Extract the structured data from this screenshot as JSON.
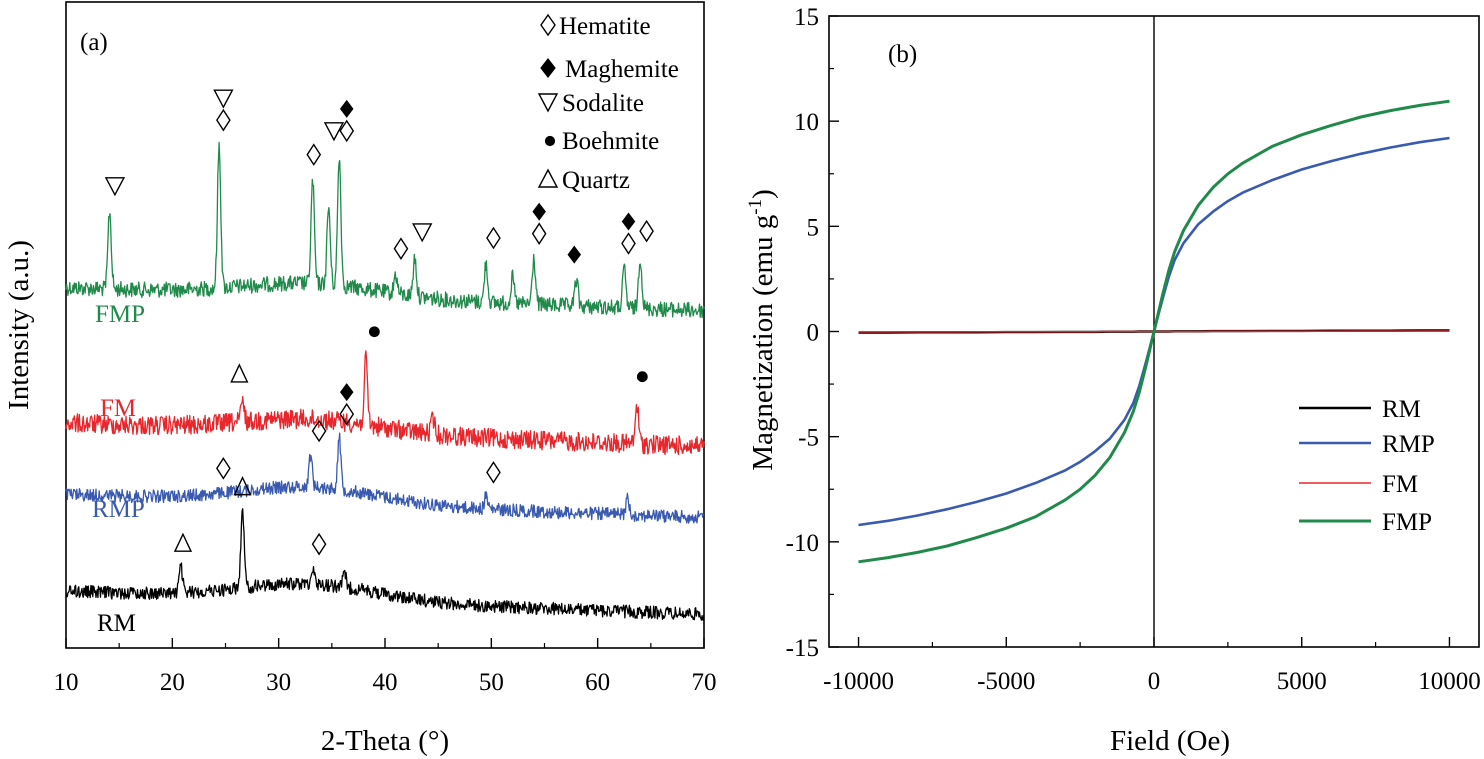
{
  "chart_data": [
    {
      "type": "line",
      "panel": "(a)",
      "xlabel": "2-Theta (°)",
      "ylabel": "Intensity (a.u.)",
      "xlim": [
        10,
        70
      ],
      "xticks": [
        "10",
        "20",
        "30",
        "40",
        "50",
        "60",
        "70"
      ],
      "legend": [
        {
          "symbol": "open-diamond",
          "label": "Hematite"
        },
        {
          "symbol": "filled-diamond",
          "label": "Maghemite"
        },
        {
          "symbol": "open-triangle-down",
          "label": "Sodalite"
        },
        {
          "symbol": "filled-circle",
          "label": "Boehmite"
        },
        {
          "symbol": "open-triangle-up",
          "label": "Quartz"
        }
      ],
      "series": [
        {
          "name": "FMP",
          "color": "#1f8a4a",
          "baseline": 0.46,
          "noise": 0.012,
          "hump": 0.02,
          "peaks": [
            [
              14.1,
              0.12
            ],
            [
              24.4,
              0.22
            ],
            [
              33.2,
              0.16
            ],
            [
              34.7,
              0.12
            ],
            [
              35.7,
              0.2
            ],
            [
              41.0,
              0.03
            ],
            [
              42.8,
              0.06
            ],
            [
              49.5,
              0.06
            ],
            [
              52.0,
              0.04
            ],
            [
              54.0,
              0.07
            ],
            [
              58.0,
              0.04
            ],
            [
              62.5,
              0.06
            ],
            [
              64.0,
              0.08
            ]
          ],
          "markers": [
            {
              "x": 14.6,
              "symbols": [
                "open-triangle-down"
              ]
            },
            {
              "x": 24.8,
              "symbols": [
                "open-diamond",
                "open-triangle-down"
              ]
            },
            {
              "x": 33.3,
              "symbols": [
                "open-diamond"
              ]
            },
            {
              "x": 35.2,
              "symbols": [
                "open-triangle-down"
              ]
            },
            {
              "x": 36.4,
              "symbols": [
                "open-diamond",
                "filled-diamond"
              ]
            },
            {
              "x": 41.5,
              "symbols": [
                "open-diamond"
              ]
            },
            {
              "x": 43.5,
              "symbols": [
                "open-triangle-down"
              ]
            },
            {
              "x": 50.2,
              "symbols": [
                "open-diamond"
              ]
            },
            {
              "x": 54.5,
              "symbols": [
                "open-diamond",
                "filled-diamond"
              ]
            },
            {
              "x": 57.8,
              "symbols": [
                "filled-diamond"
              ]
            },
            {
              "x": 62.9,
              "symbols": [
                "open-diamond",
                "filled-diamond"
              ]
            },
            {
              "x": 64.6,
              "symbols": [
                "open-diamond"
              ]
            }
          ]
        },
        {
          "name": "FM",
          "color": "#e8262b",
          "baseline": 0.67,
          "noise": 0.015,
          "hump": 0.02,
          "peaks": [
            [
              26.6,
              0.03
            ],
            [
              38.2,
              0.1
            ],
            [
              44.5,
              0.025
            ],
            [
              63.7,
              0.06
            ]
          ],
          "markers": [
            {
              "x": 26.3,
              "symbols": [
                "open-triangle-up"
              ]
            },
            {
              "x": 39.0,
              "symbols": [
                "filled-circle"
              ]
            },
            {
              "x": 64.2,
              "symbols": [
                "filled-circle"
              ]
            }
          ]
        },
        {
          "name": "RMP",
          "color": "#3a5ab0",
          "baseline": 0.78,
          "noise": 0.01,
          "hump": 0.025,
          "peaks": [
            [
              33.0,
              0.05
            ],
            [
              35.7,
              0.08
            ],
            [
              49.5,
              0.02
            ],
            [
              62.8,
              0.025
            ]
          ],
          "markers": [
            {
              "x": 24.8,
              "symbols": [
                "open-diamond"
              ]
            },
            {
              "x": 33.8,
              "symbols": [
                "open-diamond"
              ]
            },
            {
              "x": 36.4,
              "symbols": [
                "open-diamond",
                "filled-diamond"
              ]
            },
            {
              "x": 50.2,
              "symbols": [
                "open-diamond"
              ]
            }
          ]
        },
        {
          "name": "RM",
          "color": "#000000",
          "baseline": 0.93,
          "noise": 0.01,
          "hump": 0.025,
          "peaks": [
            [
              20.8,
              0.04
            ],
            [
              26.6,
              0.12
            ],
            [
              33.2,
              0.025
            ],
            [
              36.2,
              0.02
            ]
          ],
          "markers": [
            {
              "x": 21.0,
              "symbols": [
                "open-triangle-up"
              ]
            },
            {
              "x": 26.6,
              "symbols": [
                "open-triangle-up"
              ]
            },
            {
              "x": 33.8,
              "symbols": [
                "open-diamond"
              ]
            }
          ]
        }
      ]
    },
    {
      "type": "line",
      "panel": "(b)",
      "xlabel": "Field (Oe)",
      "ylabel": "Magnetization (emu g",
      "ylabel_sup": "-1",
      "ylabel_end": ")",
      "xlim": [
        -11000,
        11000
      ],
      "ylim": [
        -15,
        15
      ],
      "xticks": [
        -10000,
        -5000,
        0,
        5000,
        10000
      ],
      "xtick_labels": [
        "-10000",
        "-5000",
        "0",
        "5000",
        "10000"
      ],
      "yticks": [
        -15,
        -10,
        -5,
        0,
        5,
        10,
        15
      ],
      "ytick_labels": [
        "-15",
        "-10",
        "-5",
        "0",
        "5",
        "10",
        "15"
      ],
      "x": [
        -10000,
        -9000,
        -8000,
        -7000,
        -6000,
        -5000,
        -4000,
        -3000,
        -2500,
        -2000,
        -1500,
        -1000,
        -700,
        -500,
        -300,
        -150,
        0,
        150,
        300,
        500,
        700,
        1000,
        1500,
        2000,
        2500,
        3000,
        4000,
        5000,
        6000,
        7000,
        8000,
        9000,
        10000
      ],
      "series": [
        {
          "name": "RM",
          "color": "#000000",
          "width": 2.4,
          "y": [
            -0.05,
            -0.05,
            -0.04,
            -0.04,
            -0.04,
            -0.03,
            -0.03,
            -0.02,
            -0.02,
            -0.02,
            -0.01,
            -0.01,
            -0.01,
            0.0,
            0.0,
            0.0,
            0.0,
            0.0,
            0.0,
            0.0,
            0.01,
            0.01,
            0.01,
            0.02,
            0.02,
            0.02,
            0.03,
            0.03,
            0.04,
            0.04,
            0.04,
            0.05,
            0.05
          ]
        },
        {
          "name": "RMP",
          "color": "#3a5ab0",
          "width": 2.6,
          "y": [
            -9.2,
            -9.0,
            -8.75,
            -8.45,
            -8.1,
            -7.7,
            -7.2,
            -6.6,
            -6.2,
            -5.7,
            -5.1,
            -4.2,
            -3.4,
            -2.6,
            -1.6,
            -0.8,
            0.0,
            0.8,
            1.6,
            2.6,
            3.4,
            4.2,
            5.1,
            5.7,
            6.2,
            6.6,
            7.2,
            7.7,
            8.1,
            8.45,
            8.75,
            9.0,
            9.2
          ]
        },
        {
          "name": "FM",
          "color": "#e8262b",
          "width": 1.5,
          "y": [
            -0.02,
            -0.02,
            -0.02,
            -0.02,
            -0.01,
            -0.01,
            -0.01,
            -0.01,
            -0.01,
            -0.01,
            0.0,
            0.0,
            0.0,
            0.0,
            0.0,
            0.0,
            0.0,
            0.0,
            0.0,
            0.0,
            0.0,
            0.0,
            0.0,
            0.01,
            0.01,
            0.01,
            0.01,
            0.01,
            0.01,
            0.02,
            0.02,
            0.02,
            0.02
          ]
        },
        {
          "name": "FMP",
          "color": "#1f8a4a",
          "width": 3.0,
          "y": [
            -10.95,
            -10.75,
            -10.5,
            -10.2,
            -9.8,
            -9.35,
            -8.8,
            -8.0,
            -7.5,
            -6.85,
            -6.0,
            -4.8,
            -3.8,
            -2.9,
            -1.8,
            -0.9,
            0.0,
            0.9,
            1.8,
            2.9,
            3.8,
            4.8,
            6.0,
            6.85,
            7.5,
            8.0,
            8.8,
            9.35,
            9.8,
            10.2,
            10.5,
            10.75,
            10.95
          ]
        }
      ]
    }
  ]
}
